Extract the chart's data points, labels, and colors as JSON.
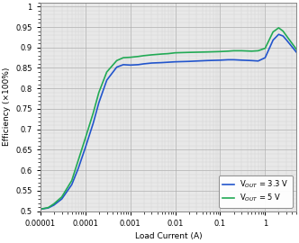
{
  "title": "",
  "xlabel": "Load Current (A)",
  "ylabel": "Efficiency (×100%)",
  "xlim": [
    1e-05,
    5
  ],
  "ylim": [
    0.5,
    1.01
  ],
  "yticks": [
    0.5,
    0.55,
    0.6,
    0.65,
    0.7,
    0.75,
    0.8,
    0.85,
    0.9,
    0.95,
    1.0
  ],
  "ytick_labels": [
    "0.5",
    "0.55",
    "0.6",
    "0.65",
    "0.7",
    "0.75",
    "0.8",
    "0.85",
    "0.9",
    "0.95",
    "1"
  ],
  "xticks": [
    1e-05,
    0.0001,
    0.001,
    0.01,
    0.1,
    1
  ],
  "xtick_labels": [
    "0.00001",
    "0.0001",
    "0.001",
    "0.01",
    "0.1",
    "1"
  ],
  "blue_color": "#2255cc",
  "green_color": "#22aa55",
  "background_color": "#e8e8e8",
  "grid_major_color": "#aaaaaa",
  "grid_minor_color": "#cccccc",
  "legend_vout33": "V$_{OUT}$ = 3.3 V",
  "legend_vout5": "V$_{OUT}$ = 5 V",
  "blue_x": [
    1e-05,
    1.5e-05,
    2e-05,
    3e-05,
    5e-05,
    7e-05,
    0.0001,
    0.00015,
    0.0002,
    0.0003,
    0.0005,
    0.0007,
    0.001,
    0.0015,
    0.002,
    0.003,
    0.005,
    0.007,
    0.01,
    0.02,
    0.05,
    0.1,
    0.15,
    0.2,
    0.3,
    0.5,
    0.7,
    1.0,
    1.5,
    2.0,
    2.5,
    3.0,
    5.0
  ],
  "blue_y": [
    0.505,
    0.508,
    0.515,
    0.53,
    0.565,
    0.605,
    0.655,
    0.715,
    0.765,
    0.82,
    0.852,
    0.858,
    0.857,
    0.858,
    0.86,
    0.862,
    0.863,
    0.864,
    0.865,
    0.866,
    0.868,
    0.869,
    0.87,
    0.87,
    0.869,
    0.868,
    0.867,
    0.875,
    0.918,
    0.932,
    0.928,
    0.918,
    0.888
  ],
  "green_x": [
    1e-05,
    1.5e-05,
    2e-05,
    3e-05,
    5e-05,
    7e-05,
    0.0001,
    0.00015,
    0.0002,
    0.0003,
    0.0005,
    0.0007,
    0.001,
    0.0015,
    0.002,
    0.003,
    0.005,
    0.007,
    0.01,
    0.02,
    0.05,
    0.1,
    0.15,
    0.2,
    0.3,
    0.5,
    0.7,
    1.0,
    1.5,
    2.0,
    2.5,
    3.0,
    5.0
  ],
  "green_y": [
    0.505,
    0.509,
    0.518,
    0.535,
    0.575,
    0.625,
    0.678,
    0.74,
    0.79,
    0.84,
    0.868,
    0.875,
    0.876,
    0.878,
    0.88,
    0.882,
    0.884,
    0.885,
    0.887,
    0.888,
    0.889,
    0.89,
    0.891,
    0.892,
    0.892,
    0.891,
    0.892,
    0.898,
    0.938,
    0.948,
    0.94,
    0.928,
    0.895
  ],
  "linewidth": 1.2,
  "font_size": 6.5,
  "tick_font_size": 6.0,
  "legend_font_size": 6.0
}
